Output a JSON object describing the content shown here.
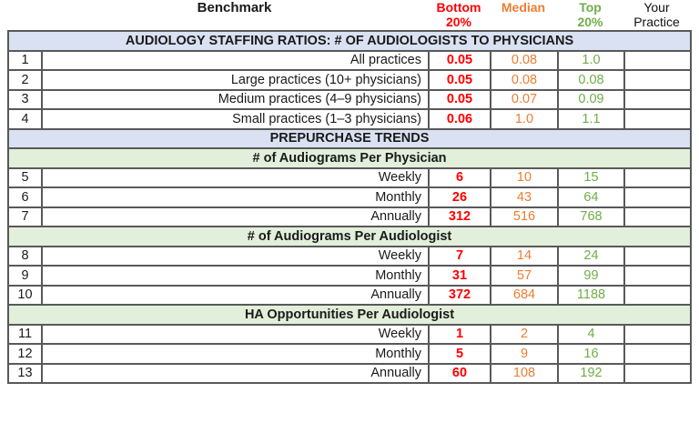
{
  "header": {
    "benchmark": "Benchmark",
    "bottom": {
      "line1": "Bottom",
      "line2": "20%"
    },
    "median": {
      "line1": "Median",
      "line2": ""
    },
    "top": {
      "line1": "Top",
      "line2": "20%"
    },
    "your": {
      "line1": "Your",
      "line2": "Practice"
    }
  },
  "colors": {
    "bottom_20": "#FF0000",
    "median": "#ED7D31",
    "top_20": "#70AD47",
    "blue_band": "#D9E1F2",
    "green_band": "#E2EFDA",
    "grid_border": "#595959"
  },
  "sections": [
    {
      "title": "AUDIOLOGY STAFFING RATIOS: # OF AUDIOLOGISTS TO PHYSICIANS",
      "style": "blue",
      "rows": [
        {
          "num": "1",
          "label": "All practices",
          "bottom": "0.05",
          "median": "0.08",
          "top": "1.0",
          "your": ""
        },
        {
          "num": "2",
          "label": "Large practices (10+ physicians)",
          "bottom": "0.05",
          "median": "0.08",
          "top": "0.08",
          "your": ""
        },
        {
          "num": "3",
          "label": "Medium practices (4–9 physicians)",
          "bottom": "0.05",
          "median": "0.07",
          "top": "0.09",
          "your": ""
        },
        {
          "num": "4",
          "label": "Small practices (1–3 physicians)",
          "bottom": "0.06",
          "median": "1.0",
          "top": "1.1",
          "your": ""
        }
      ]
    },
    {
      "title": "PREPURCHASE TRENDS",
      "style": "blue",
      "rows": []
    },
    {
      "title": "# of Audiograms Per Physician",
      "style": "green",
      "rows": [
        {
          "num": "5",
          "label": "Weekly",
          "bottom": "6",
          "median": "10",
          "top": "15",
          "your": ""
        },
        {
          "num": "6",
          "label": "Monthly",
          "bottom": "26",
          "median": "43",
          "top": "64",
          "your": ""
        },
        {
          "num": "7",
          "label": "Annually",
          "bottom": "312",
          "median": "516",
          "top": "768",
          "your": ""
        }
      ]
    },
    {
      "title": "# of Audiograms Per Audiologist",
      "style": "green",
      "rows": [
        {
          "num": "8",
          "label": "Weekly",
          "bottom": "7",
          "median": "14",
          "top": "24",
          "your": ""
        },
        {
          "num": "9",
          "label": "Monthly",
          "bottom": "31",
          "median": "57",
          "top": "99",
          "your": ""
        },
        {
          "num": "10",
          "label": "Annually",
          "bottom": "372",
          "median": "684",
          "top": "1188",
          "your": ""
        }
      ]
    },
    {
      "title": "HA Opportunities Per Audiologist",
      "style": "green",
      "rows": [
        {
          "num": "11",
          "label": "Weekly",
          "bottom": "1",
          "median": "2",
          "top": "4",
          "your": ""
        },
        {
          "num": "12",
          "label": "Monthly",
          "bottom": "5",
          "median": "9",
          "top": "16",
          "your": ""
        },
        {
          "num": "13",
          "label": "Annually",
          "bottom": "60",
          "median": "108",
          "top": "192",
          "your": ""
        }
      ]
    }
  ]
}
